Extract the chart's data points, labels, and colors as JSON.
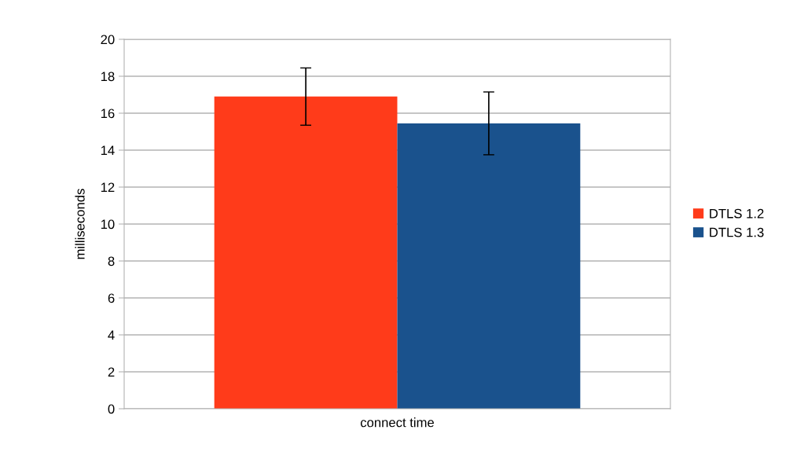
{
  "chart_data": {
    "type": "bar",
    "ylabel": "milliseconds",
    "categories": [
      "connect time"
    ],
    "series": [
      {
        "name": "DTLS 1.2",
        "color": "#ff3b1a",
        "values": [
          16.9
        ],
        "errors": [
          1.55
        ]
      },
      {
        "name": "DTLS 1.3",
        "color": "#1a528d",
        "values": [
          15.45
        ],
        "errors": [
          1.7
        ]
      }
    ],
    "ylim": [
      0,
      20
    ],
    "yticks": [
      0,
      2,
      4,
      6,
      8,
      10,
      12,
      14,
      16,
      18,
      20
    ],
    "grid": "y",
    "legend": "right"
  }
}
